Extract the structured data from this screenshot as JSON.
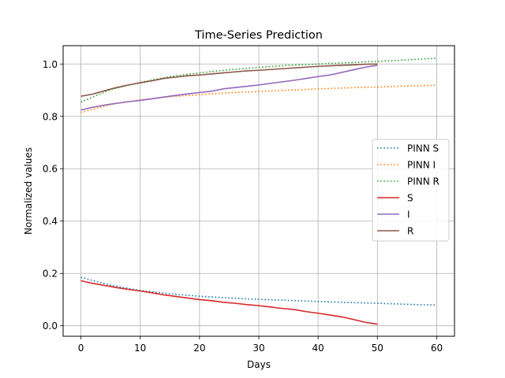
{
  "chart_data": {
    "type": "line",
    "title": "Time-Series Prediction",
    "xlabel": "Days",
    "ylabel": "Normalized values",
    "xlim": [
      -3,
      63
    ],
    "ylim": [
      -0.04,
      1.07
    ],
    "xticks": [
      0,
      10,
      20,
      30,
      40,
      50,
      60
    ],
    "xtick_labels": [
      "0",
      "10",
      "20",
      "30",
      "40",
      "50",
      "60"
    ],
    "yticks": [
      0.0,
      0.2,
      0.4,
      0.6,
      0.8,
      1.0
    ],
    "ytick_labels": [
      "0.0",
      "0.2",
      "0.4",
      "0.6",
      "0.8",
      "1.0"
    ],
    "grid": true,
    "legend_position": "center-right",
    "series": [
      {
        "name": "PINN S",
        "style": "dotted",
        "color": "#1f77b4",
        "x": [
          0,
          5,
          10,
          15,
          20,
          25,
          30,
          35,
          40,
          45,
          50,
          55,
          60
        ],
        "y": [
          0.185,
          0.155,
          0.135,
          0.122,
          0.113,
          0.106,
          0.101,
          0.097,
          0.093,
          0.089,
          0.086,
          0.082,
          0.079
        ]
      },
      {
        "name": "PINN I",
        "style": "dotted",
        "color": "#ff7f0e",
        "x": [
          0,
          5,
          10,
          15,
          20,
          25,
          30,
          35,
          40,
          45,
          50,
          55,
          60
        ],
        "y": [
          0.815,
          0.845,
          0.863,
          0.875,
          0.883,
          0.89,
          0.895,
          0.9,
          0.905,
          0.909,
          0.912,
          0.916,
          0.919
        ]
      },
      {
        "name": "PINN R",
        "style": "dotted",
        "color": "#2ca02c",
        "x": [
          0,
          5,
          10,
          15,
          20,
          25,
          30,
          35,
          40,
          45,
          50,
          55,
          60
        ],
        "y": [
          0.855,
          0.902,
          0.93,
          0.952,
          0.966,
          0.978,
          0.987,
          0.995,
          1.0,
          1.005,
          1.01,
          1.016,
          1.022
        ]
      },
      {
        "name": "S",
        "style": "solid",
        "color": "#d62728",
        "x": [
          0,
          2,
          4,
          6,
          8,
          10,
          12,
          14,
          16,
          18,
          20,
          22,
          24,
          26,
          28,
          30,
          32,
          34,
          36,
          38,
          40,
          42,
          44,
          46,
          48,
          50
        ],
        "y": [
          0.172,
          0.162,
          0.154,
          0.146,
          0.139,
          0.133,
          0.126,
          0.118,
          0.112,
          0.106,
          0.1,
          0.096,
          0.09,
          0.086,
          0.081,
          0.077,
          0.072,
          0.066,
          0.062,
          0.054,
          0.048,
          0.041,
          0.034,
          0.024,
          0.013,
          0.006
        ]
      },
      {
        "name": "I",
        "style": "solid",
        "color": "#9467bd",
        "x": [
          0,
          2,
          4,
          6,
          8,
          10,
          12,
          14,
          16,
          18,
          20,
          22,
          24,
          26,
          28,
          30,
          32,
          34,
          36,
          38,
          40,
          42,
          44,
          46,
          48,
          50
        ],
        "y": [
          0.824,
          0.835,
          0.843,
          0.85,
          0.856,
          0.861,
          0.867,
          0.874,
          0.88,
          0.886,
          0.891,
          0.896,
          0.905,
          0.91,
          0.915,
          0.92,
          0.926,
          0.932,
          0.938,
          0.945,
          0.952,
          0.958,
          0.968,
          0.978,
          0.988,
          0.995
        ]
      },
      {
        "name": "R",
        "style": "solid",
        "color": "#8c564b",
        "x": [
          0,
          2,
          4,
          6,
          8,
          10,
          12,
          14,
          16,
          18,
          20,
          22,
          24,
          26,
          28,
          30,
          32,
          34,
          36,
          38,
          40,
          42,
          44,
          46,
          48,
          50
        ],
        "y": [
          0.877,
          0.885,
          0.898,
          0.91,
          0.92,
          0.928,
          0.936,
          0.945,
          0.95,
          0.955,
          0.958,
          0.962,
          0.966,
          0.97,
          0.974,
          0.976,
          0.979,
          0.982,
          0.985,
          0.988,
          0.991,
          0.993,
          0.995,
          0.997,
          0.999,
          1.0
        ]
      }
    ]
  }
}
